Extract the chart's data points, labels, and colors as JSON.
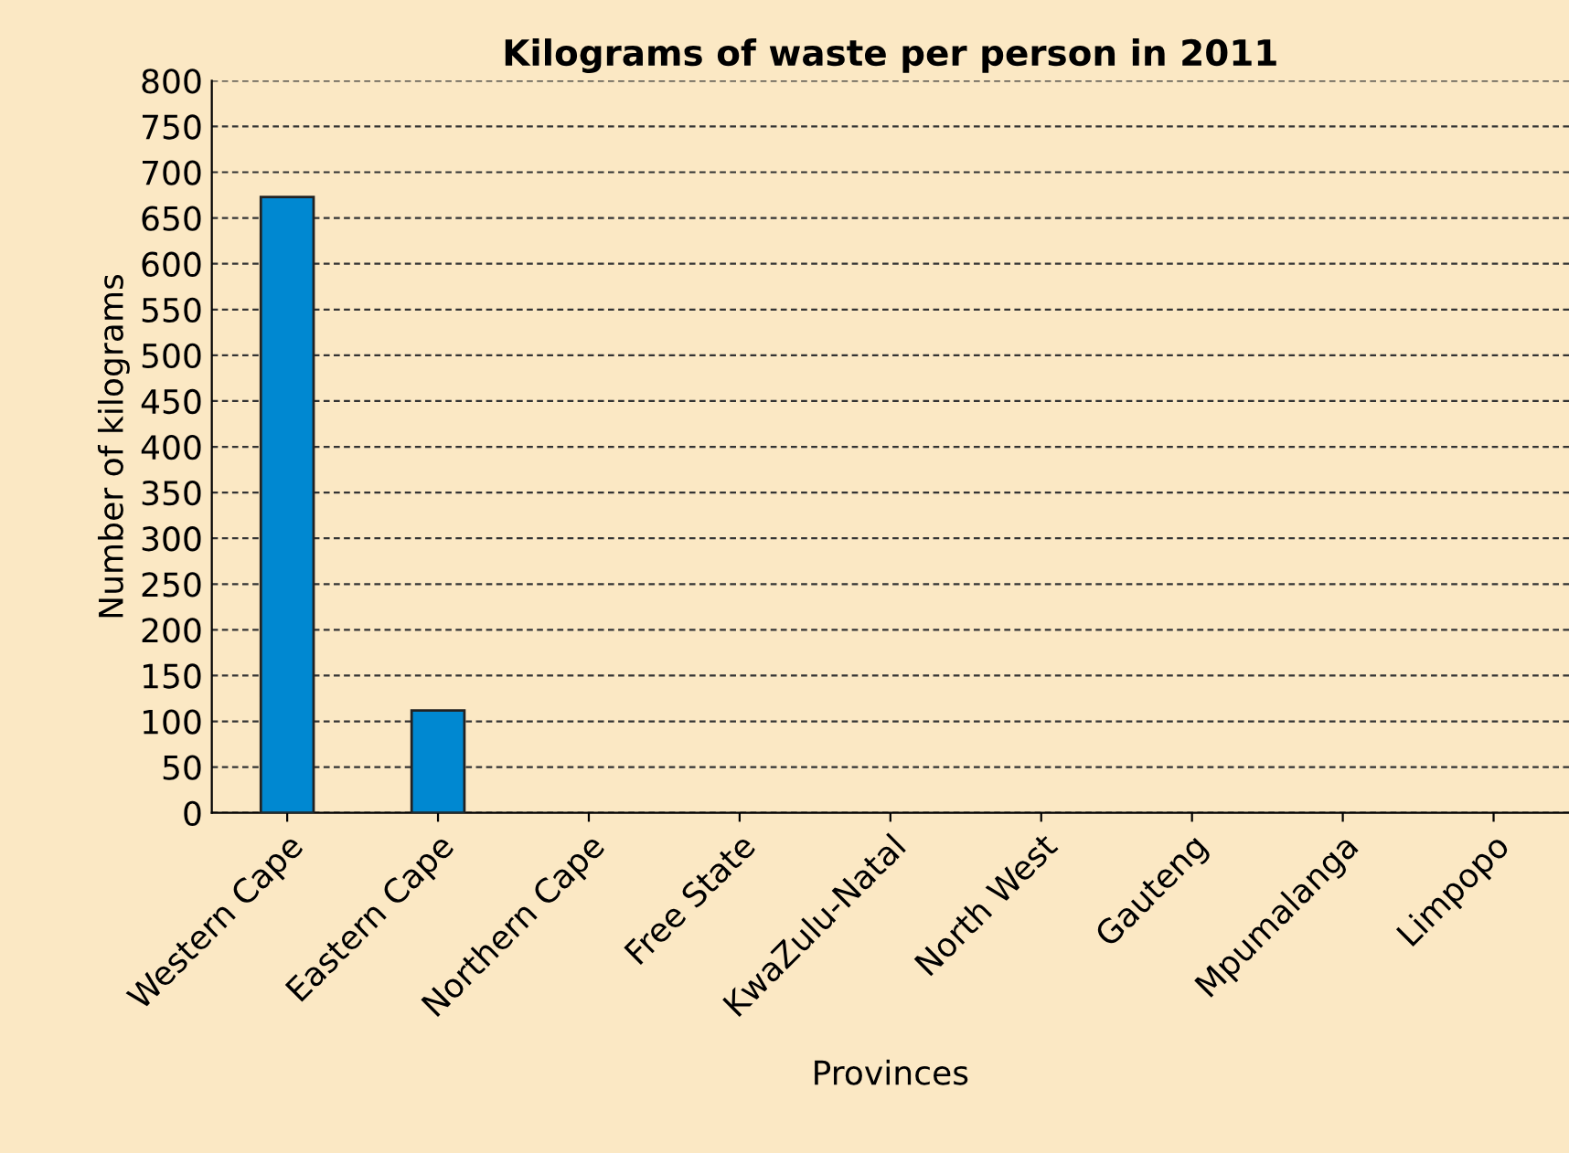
{
  "chart_data": {
    "type": "bar",
    "title": "Kilograms of waste per person in 2011",
    "xlabel": "Provinces",
    "ylabel": "Number of kilograms",
    "categories": [
      "Western Cape",
      "Eastern Cape",
      "Northern Cape",
      "Free State",
      "KwaZulu-Natal",
      "North West",
      "Gauteng",
      "Mpumalanga",
      "Limpopo"
    ],
    "values": [
      673,
      112,
      null,
      null,
      null,
      null,
      null,
      null,
      null
    ],
    "color": "#0088d1",
    "ylim": [
      0,
      800
    ],
    "yticks": [
      0,
      50,
      100,
      150,
      200,
      250,
      300,
      350,
      400,
      450,
      500,
      550,
      600,
      650,
      700,
      750,
      800
    ],
    "grid": "y",
    "line_style": "dashed"
  }
}
